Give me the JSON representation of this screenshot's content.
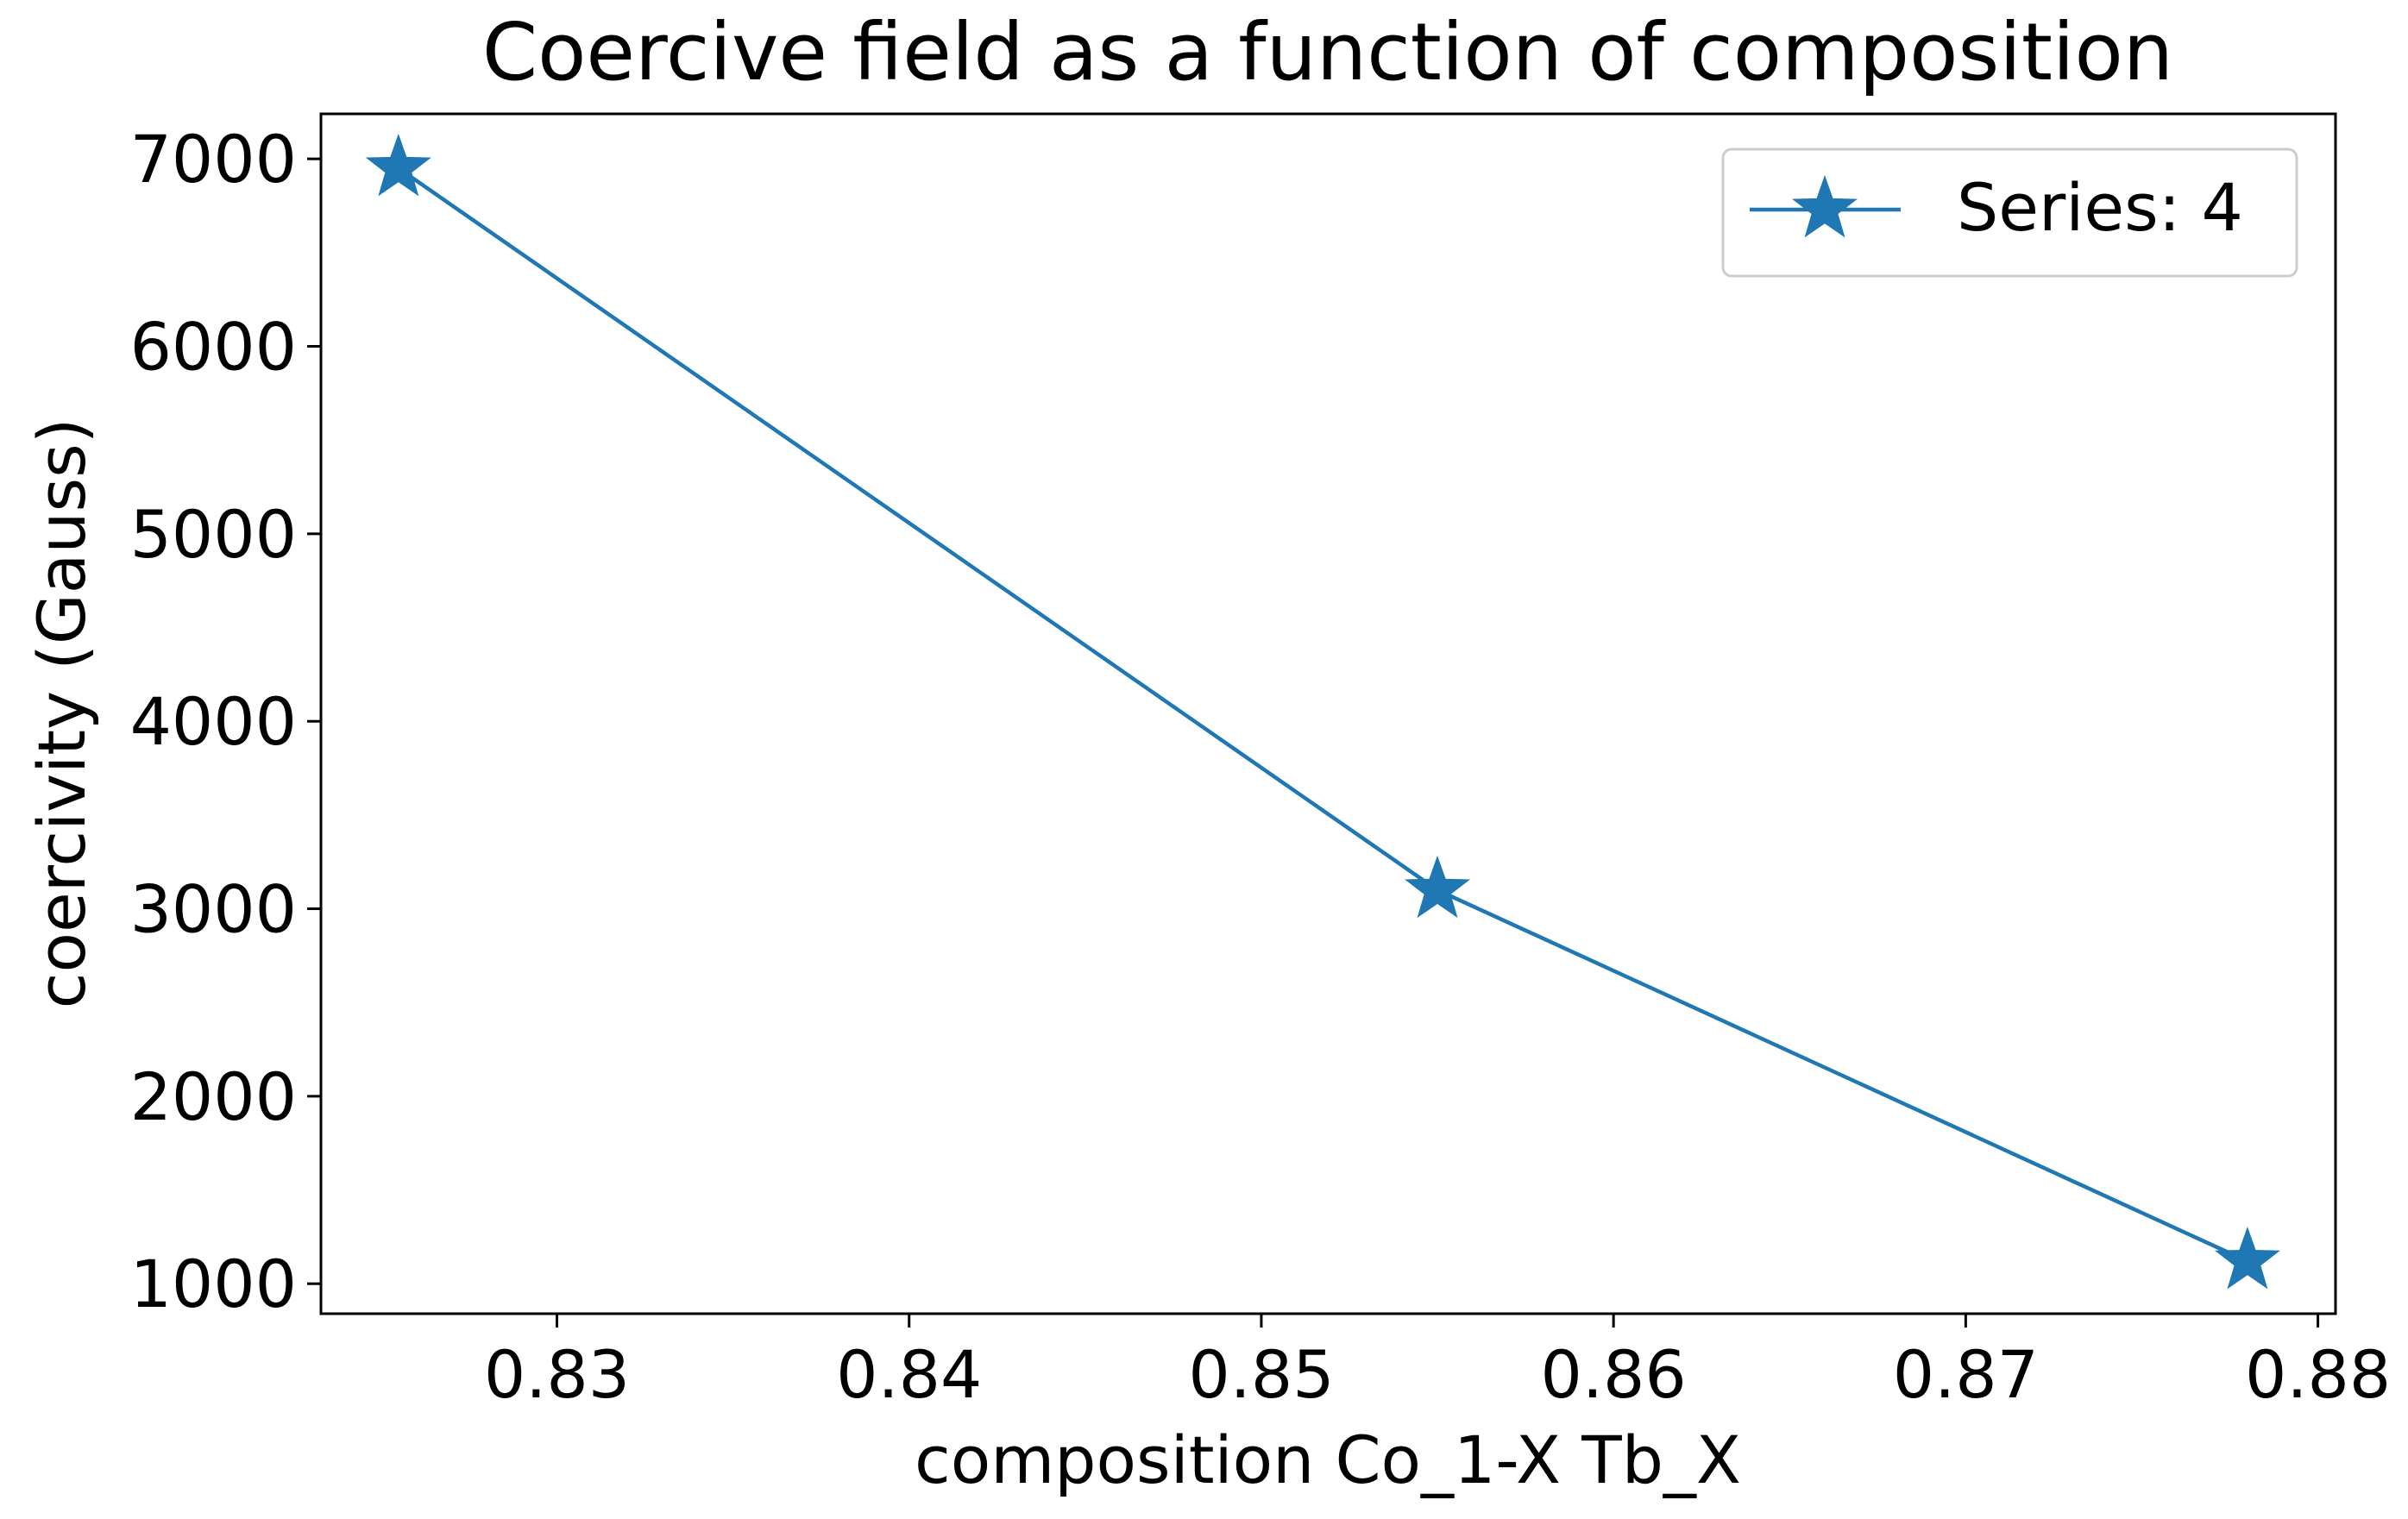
{
  "chart_data": {
    "type": "line",
    "title": "Coercive field as a function of composition",
    "xlabel": "composition Co_1-X Tb_X",
    "ylabel": "coercivity (Gauss)",
    "xlim": [
      0.8233,
      0.8805
    ],
    "ylim": [
      840,
      7240
    ],
    "xticks": [
      0.83,
      0.84,
      0.85,
      0.86,
      0.87,
      0.88
    ],
    "xtick_labels": [
      "0.83",
      "0.84",
      "0.85",
      "0.86",
      "0.87",
      "0.88"
    ],
    "yticks": [
      1000,
      2000,
      3000,
      4000,
      5000,
      6000,
      7000
    ],
    "ytick_labels": [
      "1000",
      "2000",
      "3000",
      "4000",
      "5000",
      "6000",
      "7000"
    ],
    "grid": false,
    "legend_position": "top-right",
    "series": [
      {
        "name": "Series: 4",
        "color": "#1f77b4",
        "marker": "star",
        "x": [
          0.8255,
          0.855,
          0.878
        ],
        "y": [
          6950,
          3100,
          1120
        ]
      }
    ]
  }
}
